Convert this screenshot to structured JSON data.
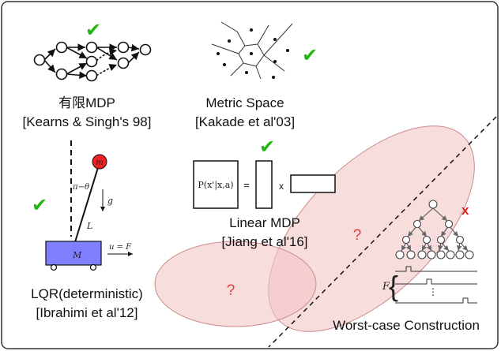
{
  "colors": {
    "check": "#22b511",
    "ellipse_fill": "#f4c7c7",
    "ellipse_stroke": "#c98a8a",
    "question": "#e03a3a",
    "cart": "#8080ff",
    "mass": "#ee2020",
    "cross": "#e02020"
  },
  "tabular": {
    "title": "有限MDP",
    "cite": "[Kearns & Singh's 98]"
  },
  "metric": {
    "title": "Metric Space",
    "cite": "[Kakade et al'03]"
  },
  "linear": {
    "title": "Linear MDP",
    "cite": "[Jiang et al'16]",
    "matrix_label": "P(x'|x,a)",
    "equals": "=",
    "times": "x"
  },
  "lqr": {
    "title": "LQR(deterministic)",
    "cite": "[Ibrahimi et al'12]",
    "angle_label": "π−θ",
    "gravity_label": "g",
    "length_label": "L",
    "mass_label": "m",
    "cart_label": "M",
    "force_label": "u = F"
  },
  "worst_case": {
    "title": "Worst-case Construction",
    "family_label": "F",
    "dots": "⋮",
    "cross": "x"
  },
  "marks": {
    "check": "✔",
    "question": "?"
  }
}
